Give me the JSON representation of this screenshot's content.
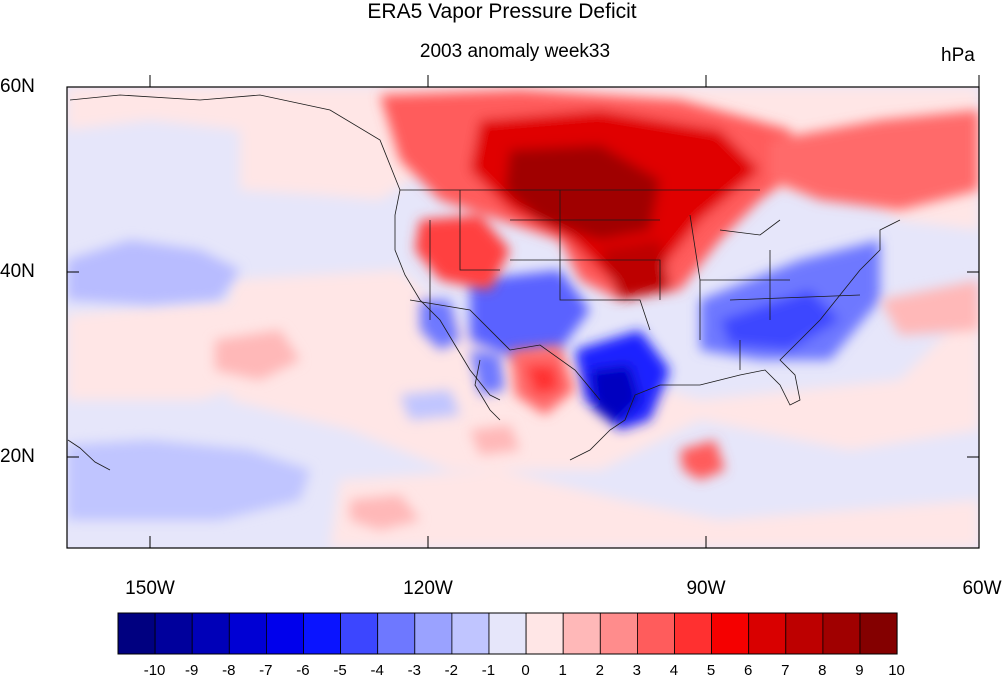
{
  "title": "ERA5 Vapor Pressure Deficit",
  "subtitle": "2003 anomaly week33",
  "units": "hPa",
  "lat_labels": [
    "60N",
    "40N",
    "20N"
  ],
  "lon_labels": [
    "150W",
    "120W",
    "90W",
    "60W"
  ],
  "colorbar": {
    "labels": [
      "-10",
      "-9",
      "-8",
      "-7",
      "-6",
      "-5",
      "-4",
      "-3",
      "-2",
      "-1",
      "0",
      "1",
      "2",
      "3",
      "4",
      "5",
      "6",
      "7",
      "8",
      "9",
      "10"
    ],
    "colors": [
      "#000080",
      "#00009c",
      "#0000b8",
      "#0000d4",
      "#0000ec",
      "#0a14ff",
      "#3c46ff",
      "#6e78ff",
      "#9aa2ff",
      "#c0c5ff",
      "#e6e6fa",
      "#ffe6e6",
      "#ffb8b8",
      "#ff8c8c",
      "#ff5c5c",
      "#ff3030",
      "#f50000",
      "#d90000",
      "#bd0000",
      "#a00000",
      "#840000"
    ]
  },
  "map_extent": {
    "lon_min": -160,
    "lon_max": -60,
    "lat_min": 10,
    "lat_max": 60
  },
  "background_color": "#e6e6fa"
}
